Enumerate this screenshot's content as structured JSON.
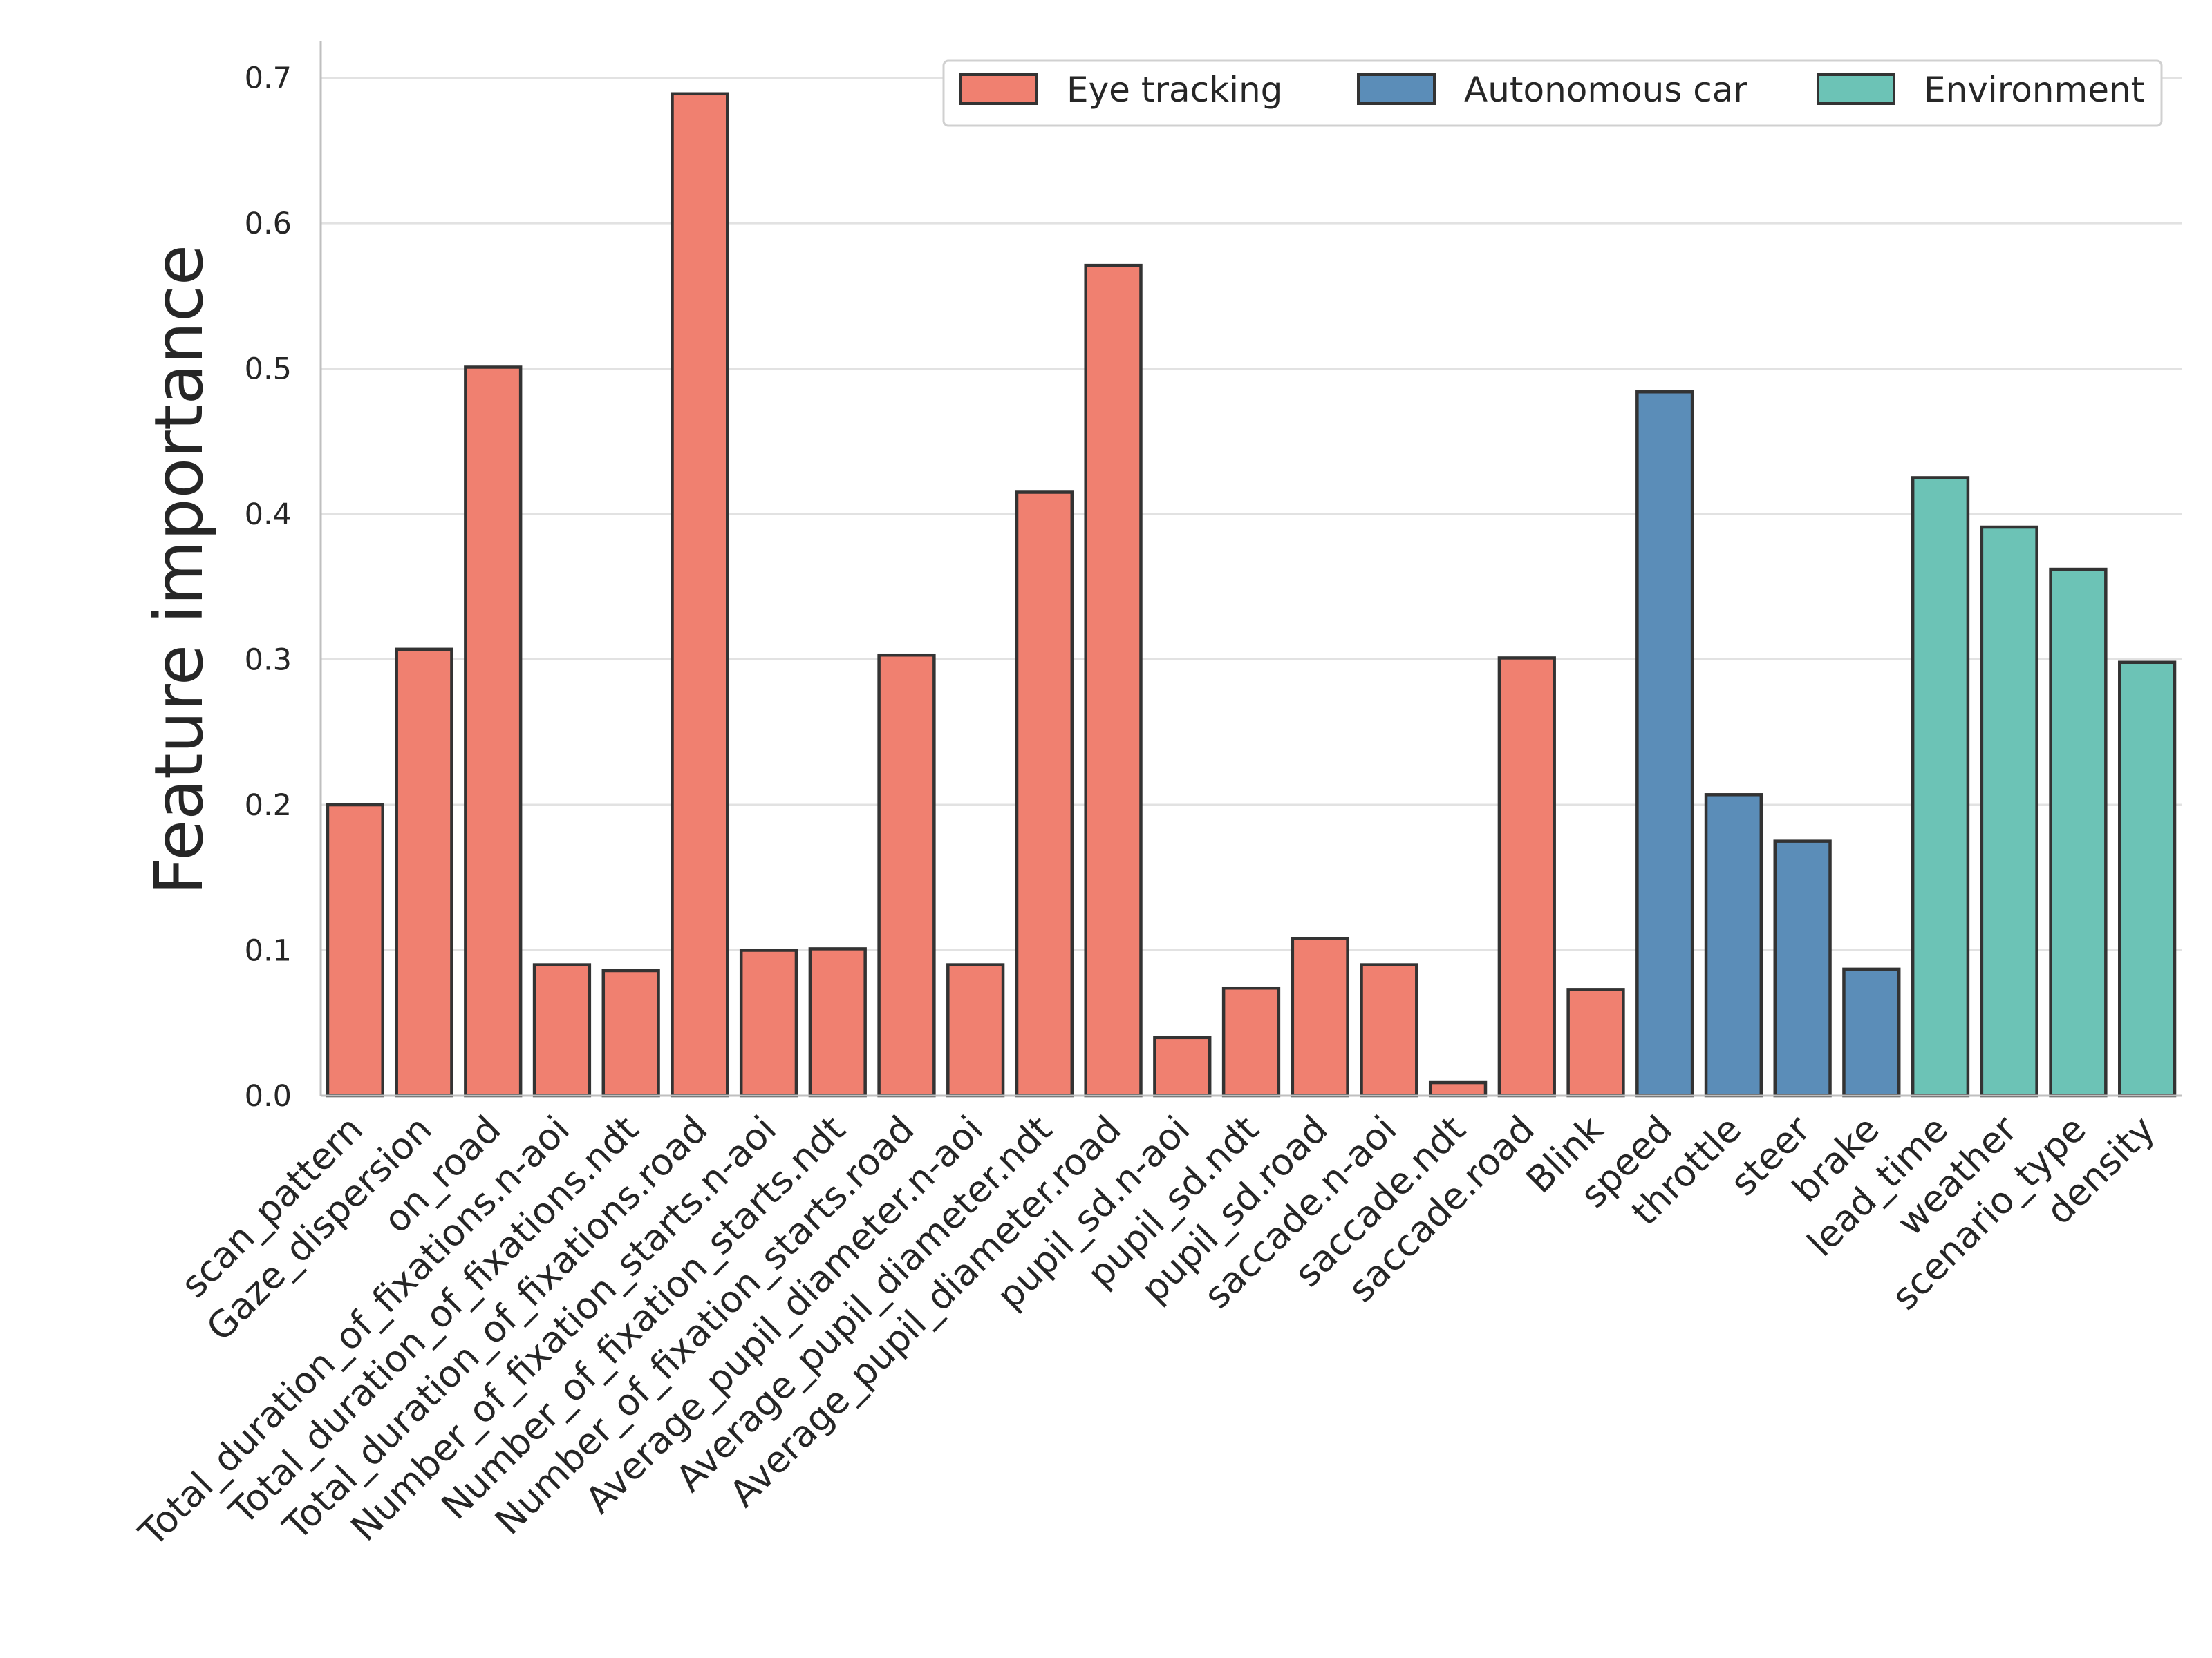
{
  "chart_data": {
    "type": "bar",
    "title": "",
    "xlabel": "",
    "ylabel": "Feature importance",
    "ylim": [
      0,
      0.725
    ],
    "yticks": [
      "0.0",
      "0.1",
      "0.2",
      "0.3",
      "0.4",
      "0.5",
      "0.6",
      "0.7"
    ],
    "grid": "y",
    "legend_position": "top-right",
    "categories": [
      "scan_pattern",
      "Gaze_dispersion",
      "on_road",
      "Total_duration_of_fixations.n-aoi",
      "Total_duration_of_fixations.ndt",
      "Total_duration_of_fixations.road",
      "Number_of_fixation_starts.n-aoi",
      "Number_of_fixation_starts.ndt",
      "Number_of_fixation_starts.road",
      "Average_pupil_diameter.n-aoi",
      "Average_pupil_diameter.ndt",
      "Average_pupil_diameter.road",
      "pupil_sd.n-aoi",
      "pupil_sd.ndt",
      "pupil_sd.road",
      "saccade.n-aoi",
      "saccade.ndt",
      "saccade.road",
      "Blink",
      "speed",
      "throttle",
      "steer",
      "brake",
      "lead_time",
      "weather",
      "scenario_type",
      "density"
    ],
    "values": [
      0.2,
      0.307,
      0.501,
      0.09,
      0.086,
      0.689,
      0.1,
      0.101,
      0.303,
      0.09,
      0.415,
      0.571,
      0.04,
      0.074,
      0.108,
      0.09,
      0.009,
      0.301,
      0.073,
      0.484,
      0.207,
      0.175,
      0.087,
      0.425,
      0.391,
      0.362,
      0.298
    ],
    "groups": [
      "Eye tracking",
      "Eye tracking",
      "Eye tracking",
      "Eye tracking",
      "Eye tracking",
      "Eye tracking",
      "Eye tracking",
      "Eye tracking",
      "Eye tracking",
      "Eye tracking",
      "Eye tracking",
      "Eye tracking",
      "Eye tracking",
      "Eye tracking",
      "Eye tracking",
      "Eye tracking",
      "Eye tracking",
      "Eye tracking",
      "Eye tracking",
      "Autonomous car",
      "Autonomous car",
      "Autonomous car",
      "Autonomous car",
      "Environment",
      "Environment",
      "Environment",
      "Environment"
    ],
    "legend": [
      {
        "name": "Eye tracking",
        "color": "#f08070"
      },
      {
        "name": "Autonomous car",
        "color": "#5b8db8"
      },
      {
        "name": "Environment",
        "color": "#6cc3b6"
      }
    ],
    "edge_color": "#333333",
    "grid_color": "#e2e2e2"
  }
}
